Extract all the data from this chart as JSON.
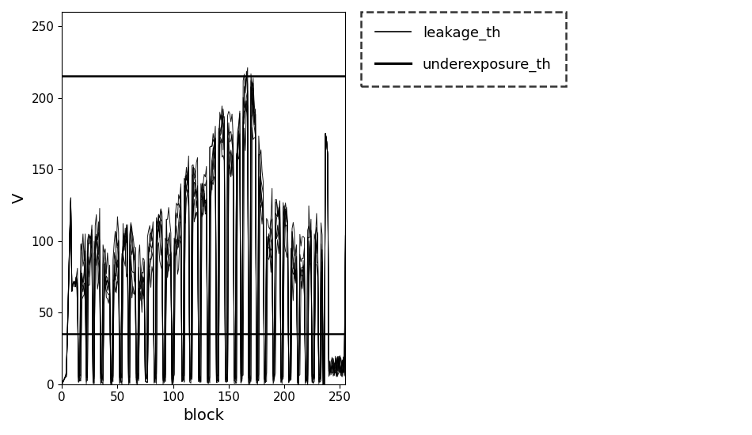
{
  "xlabel": "block",
  "ylabel": "V",
  "xlim": [
    0,
    255
  ],
  "ylim": [
    0,
    260
  ],
  "xticks": [
    0,
    50,
    100,
    150,
    200,
    250
  ],
  "yticks": [
    0,
    50,
    100,
    150,
    200,
    250
  ],
  "leakage_th": 215,
  "underexposure_th": 35,
  "line_color": "#000000",
  "hline_color": "#000000",
  "background_color": "#ffffff",
  "legend_labels": [
    "leakage_th",
    "underexposure_th"
  ],
  "num_signals": 7,
  "axis_fontsize": 14,
  "legend_fontsize": 13
}
